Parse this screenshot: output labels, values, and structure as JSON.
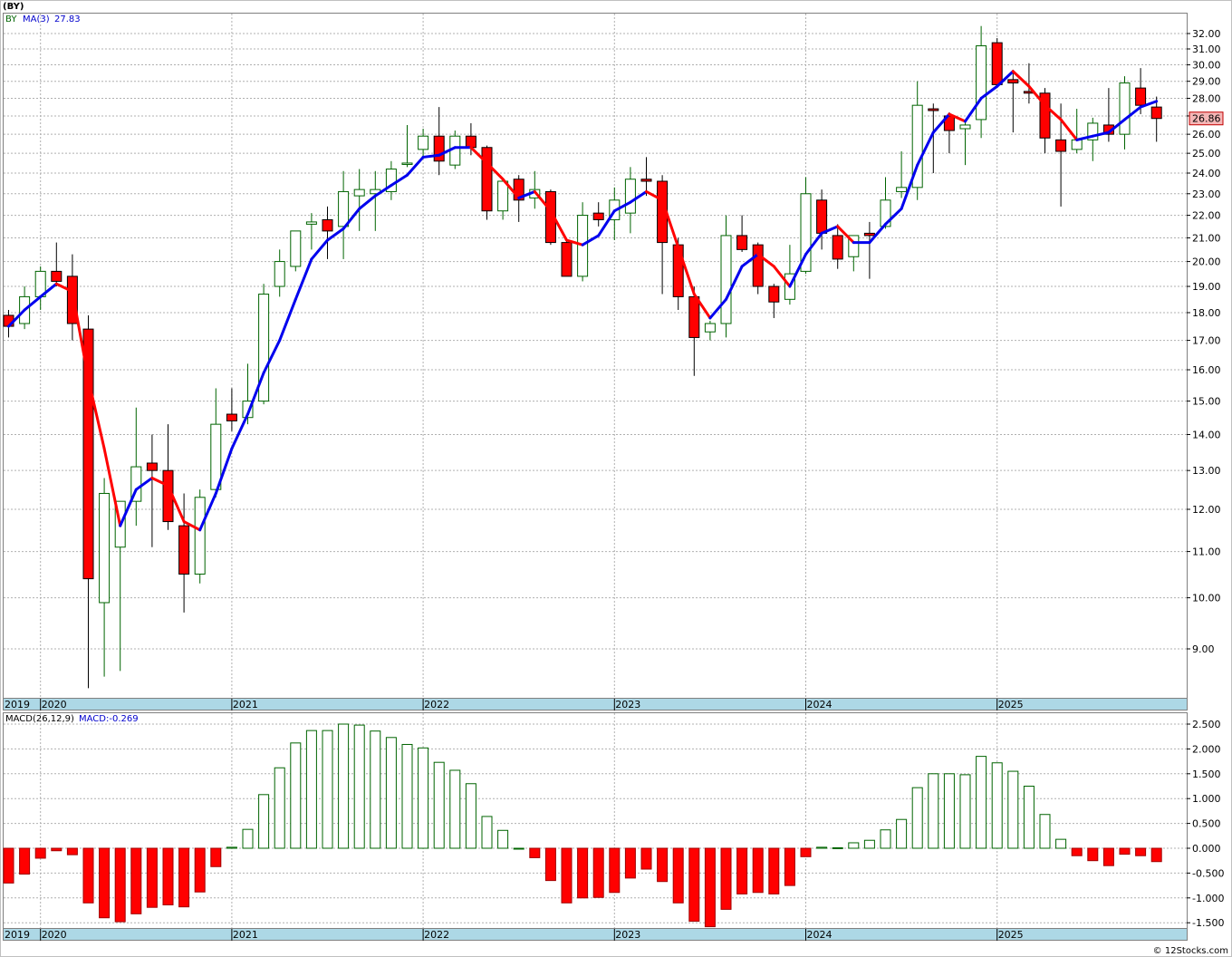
{
  "header": {
    "title": "(BY)"
  },
  "price_panel": {
    "symbol": "BY",
    "ma_label": "MA(3)",
    "ma_value": "27.83",
    "last_price_label": "26.86"
  },
  "macd_panel": {
    "label": "MACD(26,12,9)",
    "value_label": "MACD:-0.269"
  },
  "footer": {
    "credit": "© 12Stocks.com"
  },
  "colors": {
    "up_candle_border": "#006400",
    "down_candle_fill": "#ff0000",
    "ma_up": "#0000ee",
    "ma_down": "#ff0000",
    "macd_positive": "#006400",
    "macd_negative": "#ff0000",
    "date_bar": "#add8e6",
    "grid": "#b0b0b0"
  },
  "chart_data": [
    {
      "type": "candlestick",
      "scale": "log",
      "ylim": [
        8.2,
        33.0
      ],
      "y_ticks": [
        "32.00",
        "31.00",
        "30.00",
        "29.00",
        "28.00",
        "27.00",
        "26.00",
        "25.00",
        "24.00",
        "23.00",
        "22.00",
        "21.00",
        "20.00",
        "19.00",
        "18.00",
        "17.00",
        "16.00",
        "15.00",
        "14.00",
        "13.00",
        "12.00",
        "11.00",
        "10.00",
        "9.00"
      ],
      "x_year_labels": [
        "2019",
        "2020",
        "2021",
        "2022",
        "2023",
        "2024",
        "2025"
      ],
      "candles": [
        {
          "date": "2019-11",
          "open": 17.9,
          "high": 18.1,
          "low": 17.1,
          "close": 17.5
        },
        {
          "date": "2019-12",
          "open": 17.6,
          "high": 19.0,
          "low": 17.4,
          "close": 18.6
        },
        {
          "date": "2020-01",
          "open": 18.6,
          "high": 19.8,
          "low": 18.1,
          "close": 19.6
        },
        {
          "date": "2020-02",
          "open": 19.6,
          "high": 20.8,
          "low": 19.0,
          "close": 19.2
        },
        {
          "date": "2020-03",
          "open": 19.4,
          "high": 20.3,
          "low": 17.0,
          "close": 17.6
        },
        {
          "date": "2020-04",
          "open": 17.4,
          "high": 17.9,
          "low": 8.3,
          "close": 10.4
        },
        {
          "date": "2020-05",
          "open": 9.9,
          "high": 12.8,
          "low": 8.5,
          "close": 12.4
        },
        {
          "date": "2020-06",
          "open": 11.1,
          "high": 12.2,
          "low": 8.6,
          "close": 12.2
        },
        {
          "date": "2020-07",
          "open": 12.2,
          "high": 14.8,
          "low": 11.6,
          "close": 13.1
        },
        {
          "date": "2020-08",
          "open": 13.2,
          "high": 14.0,
          "low": 11.1,
          "close": 13.0
        },
        {
          "date": "2020-09",
          "open": 13.0,
          "high": 14.3,
          "low": 11.5,
          "close": 11.7
        },
        {
          "date": "2020-10",
          "open": 11.6,
          "high": 12.4,
          "low": 9.7,
          "close": 10.5
        },
        {
          "date": "2020-11",
          "open": 10.5,
          "high": 12.5,
          "low": 10.3,
          "close": 12.3
        },
        {
          "date": "2020-12",
          "open": 12.5,
          "high": 15.4,
          "low": 12.3,
          "close": 14.3
        },
        {
          "date": "2021-01",
          "open": 14.6,
          "high": 15.4,
          "low": 14.1,
          "close": 14.4
        },
        {
          "date": "2021-02",
          "open": 14.5,
          "high": 16.2,
          "low": 14.3,
          "close": 15.0
        },
        {
          "date": "2021-03",
          "open": 15.0,
          "high": 19.1,
          "low": 14.9,
          "close": 18.7
        },
        {
          "date": "2021-04",
          "open": 19.0,
          "high": 20.5,
          "low": 18.6,
          "close": 20.0
        },
        {
          "date": "2021-05",
          "open": 19.8,
          "high": 21.3,
          "low": 19.6,
          "close": 21.3
        },
        {
          "date": "2021-06",
          "open": 21.6,
          "high": 22.1,
          "low": 20.5,
          "close": 21.7
        },
        {
          "date": "2021-07",
          "open": 21.8,
          "high": 22.4,
          "low": 20.1,
          "close": 21.3
        },
        {
          "date": "2021-08",
          "open": 21.5,
          "high": 24.1,
          "low": 20.1,
          "close": 23.1
        },
        {
          "date": "2021-09",
          "open": 22.9,
          "high": 24.2,
          "low": 21.3,
          "close": 23.2
        },
        {
          "date": "2021-10",
          "open": 23.0,
          "high": 24.1,
          "low": 21.3,
          "close": 23.2
        },
        {
          "date": "2021-11",
          "open": 23.1,
          "high": 24.6,
          "low": 22.7,
          "close": 24.2
        },
        {
          "date": "2021-12",
          "open": 24.5,
          "high": 26.5,
          "low": 24.3,
          "close": 24.5
        },
        {
          "date": "2022-01",
          "open": 25.2,
          "high": 26.3,
          "low": 24.7,
          "close": 25.9
        },
        {
          "date": "2022-02",
          "open": 25.9,
          "high": 27.5,
          "low": 23.9,
          "close": 24.6
        },
        {
          "date": "2022-03",
          "open": 24.4,
          "high": 26.2,
          "low": 24.2,
          "close": 25.9
        },
        {
          "date": "2022-04",
          "open": 25.9,
          "high": 26.6,
          "low": 24.9,
          "close": 25.3
        },
        {
          "date": "2022-05",
          "open": 25.3,
          "high": 25.4,
          "low": 21.8,
          "close": 22.2
        },
        {
          "date": "2022-06",
          "open": 22.2,
          "high": 23.7,
          "low": 21.8,
          "close": 23.6
        },
        {
          "date": "2022-07",
          "open": 23.7,
          "high": 23.9,
          "low": 21.7,
          "close": 22.7
        },
        {
          "date": "2022-08",
          "open": 22.8,
          "high": 24.1,
          "low": 22.3,
          "close": 23.2
        },
        {
          "date": "2022-09",
          "open": 23.1,
          "high": 23.2,
          "low": 20.7,
          "close": 20.8
        },
        {
          "date": "2022-10",
          "open": 20.8,
          "high": 20.9,
          "low": 19.4,
          "close": 19.4
        },
        {
          "date": "2022-11",
          "open": 19.4,
          "high": 22.6,
          "low": 19.2,
          "close": 22.0
        },
        {
          "date": "2022-12",
          "open": 22.1,
          "high": 22.6,
          "low": 21.5,
          "close": 21.8
        },
        {
          "date": "2023-01",
          "open": 21.8,
          "high": 23.3,
          "low": 20.9,
          "close": 22.7
        },
        {
          "date": "2023-02",
          "open": 22.1,
          "high": 24.3,
          "low": 21.2,
          "close": 23.7
        },
        {
          "date": "2023-03",
          "open": 23.7,
          "high": 24.8,
          "low": 22.9,
          "close": 23.6
        },
        {
          "date": "2023-04",
          "open": 23.6,
          "high": 23.9,
          "low": 18.7,
          "close": 20.8
        },
        {
          "date": "2023-05",
          "open": 20.7,
          "high": 21.0,
          "low": 18.1,
          "close": 18.6
        },
        {
          "date": "2023-06",
          "open": 18.6,
          "high": 19.0,
          "low": 15.8,
          "close": 17.1
        },
        {
          "date": "2023-07",
          "open": 17.3,
          "high": 17.7,
          "low": 17.0,
          "close": 17.6
        },
        {
          "date": "2023-08",
          "open": 17.6,
          "high": 22.0,
          "low": 17.1,
          "close": 21.1
        },
        {
          "date": "2023-09",
          "open": 21.1,
          "high": 22.0,
          "low": 20.4,
          "close": 20.5
        },
        {
          "date": "2023-10",
          "open": 20.7,
          "high": 20.8,
          "low": 18.7,
          "close": 19.0
        },
        {
          "date": "2023-11",
          "open": 19.0,
          "high": 19.1,
          "low": 17.8,
          "close": 18.4
        },
        {
          "date": "2023-12",
          "open": 18.5,
          "high": 20.7,
          "low": 18.3,
          "close": 19.5
        },
        {
          "date": "2024-01",
          "open": 19.6,
          "high": 23.8,
          "low": 19.5,
          "close": 23.0
        },
        {
          "date": "2024-02",
          "open": 22.7,
          "high": 23.2,
          "low": 20.5,
          "close": 21.2
        },
        {
          "date": "2024-03",
          "open": 21.1,
          "high": 21.6,
          "low": 19.7,
          "close": 20.1
        },
        {
          "date": "2024-04",
          "open": 20.2,
          "high": 21.1,
          "low": 19.6,
          "close": 21.1
        },
        {
          "date": "2024-05",
          "open": 21.2,
          "high": 21.7,
          "low": 19.3,
          "close": 21.1
        },
        {
          "date": "2024-06",
          "open": 21.5,
          "high": 23.8,
          "low": 21.4,
          "close": 22.7
        },
        {
          "date": "2024-07",
          "open": 23.1,
          "high": 25.1,
          "low": 22.8,
          "close": 23.3
        },
        {
          "date": "2024-08",
          "open": 23.3,
          "high": 29.0,
          "low": 22.7,
          "close": 27.6
        },
        {
          "date": "2024-09",
          "open": 27.4,
          "high": 27.7,
          "low": 24.0,
          "close": 27.3
        },
        {
          "date": "2024-10",
          "open": 27.0,
          "high": 27.2,
          "low": 25.0,
          "close": 26.2
        },
        {
          "date": "2024-11",
          "open": 26.3,
          "high": 26.8,
          "low": 24.4,
          "close": 26.5
        },
        {
          "date": "2024-12",
          "open": 26.8,
          "high": 32.5,
          "low": 25.8,
          "close": 31.2
        },
        {
          "date": "2025-01",
          "open": 31.4,
          "high": 31.7,
          "low": 28.6,
          "close": 28.8
        },
        {
          "date": "2025-02",
          "open": 29.1,
          "high": 29.7,
          "low": 26.1,
          "close": 28.9
        },
        {
          "date": "2025-03",
          "open": 28.4,
          "high": 30.1,
          "low": 27.7,
          "close": 28.3
        },
        {
          "date": "2025-04",
          "open": 28.3,
          "high": 28.6,
          "low": 25.0,
          "close": 25.8
        },
        {
          "date": "2025-05",
          "open": 25.7,
          "high": 27.7,
          "low": 22.4,
          "close": 25.1
        },
        {
          "date": "2025-06",
          "open": 25.2,
          "high": 27.4,
          "low": 25.0,
          "close": 25.7
        },
        {
          "date": "2025-07",
          "open": 25.7,
          "high": 26.9,
          "low": 24.6,
          "close": 26.6
        },
        {
          "date": "2025-08",
          "open": 26.5,
          "high": 28.6,
          "low": 25.6,
          "close": 26.0
        },
        {
          "date": "2025-09",
          "open": 26.0,
          "high": 29.3,
          "low": 25.2,
          "close": 28.9
        },
        {
          "date": "2025-10",
          "open": 28.6,
          "high": 29.8,
          "low": 27.1,
          "close": 27.6
        },
        {
          "date": "2025-11",
          "open": 27.5,
          "high": 28.1,
          "low": 25.6,
          "close": 26.86
        }
      ],
      "ma3": [
        17.5,
        18.1,
        18.6,
        19.1,
        18.8,
        15.7,
        13.6,
        11.6,
        12.5,
        12.8,
        12.6,
        11.7,
        11.5,
        12.4,
        13.6,
        14.6,
        15.9,
        17.0,
        18.5,
        20.1,
        20.9,
        21.4,
        22.3,
        22.9,
        23.4,
        23.9,
        24.8,
        24.9,
        25.3,
        25.3,
        24.5,
        23.7,
        22.8,
        23.1,
        22.2,
        20.9,
        20.7,
        21.1,
        22.2,
        22.6,
        23.1,
        22.7,
        20.6,
        18.7,
        17.8,
        18.5,
        19.8,
        20.3,
        19.8,
        19.0,
        20.3,
        21.2,
        21.5,
        20.8,
        20.8,
        21.6,
        22.3,
        24.4,
        26.1,
        27.1,
        26.7,
        28.0,
        28.7,
        29.6,
        28.7,
        27.6,
        26.8,
        25.7,
        25.9,
        26.1,
        26.8,
        27.5,
        27.83
      ]
    },
    {
      "type": "bar",
      "name": "MACD(26,12,9)",
      "ylim": [
        -1.65,
        2.65
      ],
      "y_ticks": [
        "2.500",
        "2.000",
        "1.500",
        "1.000",
        "0.500",
        "0.000",
        "-0.500",
        "-1.000",
        "-1.500"
      ],
      "x_year_labels": [
        "2019",
        "2020",
        "2021",
        "2022",
        "2023",
        "2024",
        "2025"
      ],
      "values": [
        -0.7,
        -0.52,
        -0.2,
        -0.05,
        -0.13,
        -1.1,
        -1.4,
        -1.48,
        -1.32,
        -1.19,
        -1.14,
        -1.18,
        -0.88,
        -0.37,
        0.02,
        0.38,
        1.08,
        1.62,
        2.12,
        2.37,
        2.37,
        2.5,
        2.48,
        2.36,
        2.23,
        2.09,
        2.02,
        1.73,
        1.57,
        1.3,
        0.64,
        0.36,
        0.0,
        -0.19,
        -0.65,
        -1.1,
        -1.0,
        -0.99,
        -0.89,
        -0.6,
        -0.42,
        -0.67,
        -1.1,
        -1.47,
        -1.58,
        -1.23,
        -0.92,
        -0.89,
        -0.92,
        -0.75,
        -0.17,
        0.02,
        0.01,
        0.11,
        0.16,
        0.37,
        0.58,
        1.22,
        1.5,
        1.5,
        1.48,
        1.85,
        1.72,
        1.55,
        1.25,
        0.68,
        0.18,
        -0.15,
        -0.25,
        -0.35,
        -0.12,
        -0.15,
        -0.269
      ]
    }
  ]
}
